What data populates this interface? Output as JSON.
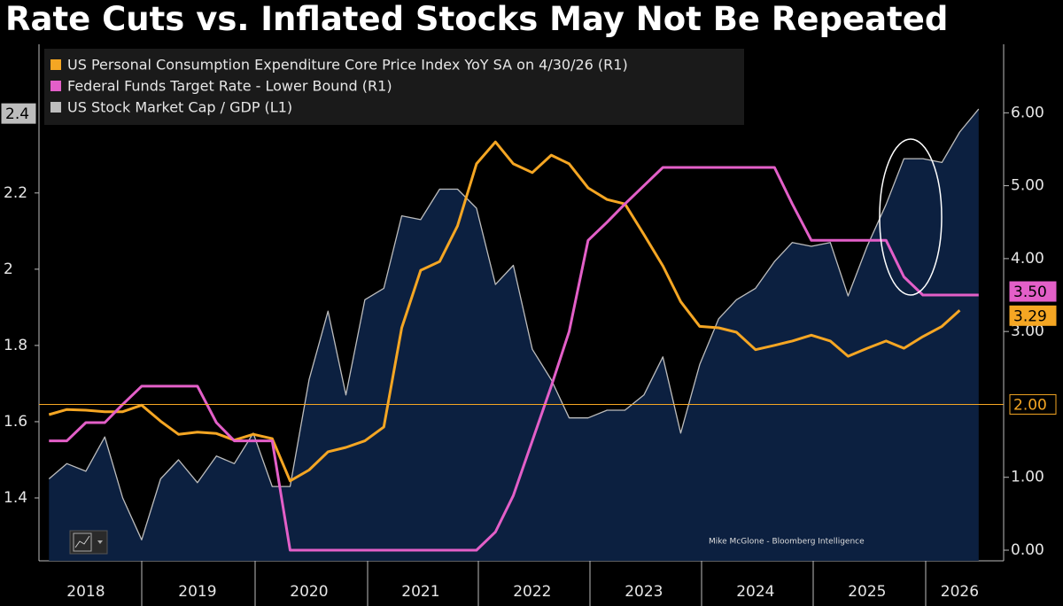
{
  "chart_data": {
    "type": "line",
    "title": "Rate Cuts vs. Inflated Stocks May Not Be Repeated",
    "annotation": "Mike McGlone - Bloomberg Intelligence",
    "x": [
      2018.17,
      2018.33,
      2018.5,
      2018.67,
      2018.83,
      2019.0,
      2019.17,
      2019.33,
      2019.5,
      2019.67,
      2019.83,
      2020.0,
      2020.17,
      2020.33,
      2020.5,
      2020.67,
      2020.83,
      2021.0,
      2021.17,
      2021.33,
      2021.5,
      2021.67,
      2021.83,
      2022.0,
      2022.17,
      2022.33,
      2022.5,
      2022.67,
      2022.83,
      2023.0,
      2023.17,
      2023.33,
      2023.5,
      2023.67,
      2023.83,
      2024.0,
      2024.17,
      2024.33,
      2024.5,
      2024.67,
      2024.83,
      2025.0,
      2025.17,
      2025.33,
      2025.5,
      2025.67,
      2025.83,
      2026.0,
      2026.17,
      2026.33,
      2026.5
    ],
    "xlim": [
      2018.08,
      2026.66
    ],
    "xticks": [
      {
        "value": 2018.5,
        "label": "2018"
      },
      {
        "value": 2019.5,
        "label": "2019"
      },
      {
        "value": 2020.5,
        "label": "2020"
      },
      {
        "value": 2021.5,
        "label": "2021"
      },
      {
        "value": 2022.5,
        "label": "2022"
      },
      {
        "value": 2023.5,
        "label": "2023"
      },
      {
        "value": 2024.5,
        "label": "2024"
      },
      {
        "value": 2025.5,
        "label": "2025"
      },
      {
        "value": 2026.33,
        "label": "2026"
      }
    ],
    "ylim": [
      1.235,
      2.59
    ],
    "yticks": [
      1.4,
      1.6,
      1.8,
      2.0,
      2.2
    ],
    "y2lim": [
      -0.146,
      6.94
    ],
    "y2ticks": [
      {
        "value": 0,
        "label": "0.00"
      },
      {
        "value": 1,
        "label": "1.00"
      },
      {
        "value": 3,
        "label": "3.00"
      },
      {
        "value": 4,
        "label": "4.00"
      },
      {
        "value": 5,
        "label": "5.00"
      },
      {
        "value": 6,
        "label": "6.00"
      }
    ],
    "hline": {
      "value": 2,
      "label": "2.00",
      "axis": "y2",
      "color": "#f5a623"
    },
    "series": [
      {
        "name": "US Personal Consumption Expenditure Core Price Index YoY SA on 4/30/26 (R1)",
        "color": "#f5a623",
        "axis": "y2",
        "end_label": "3.29",
        "values": [
          1.86,
          1.93,
          1.92,
          1.9,
          1.9,
          1.99,
          1.77,
          1.59,
          1.62,
          1.6,
          1.51,
          1.59,
          1.53,
          0.95,
          1.1,
          1.35,
          1.41,
          1.5,
          1.69,
          3.05,
          3.84,
          3.96,
          4.45,
          5.3,
          5.6,
          5.3,
          5.18,
          5.42,
          5.3,
          4.97,
          4.81,
          4.75,
          4.33,
          3.9,
          3.41,
          3.07,
          3.05,
          2.99,
          2.75,
          2.81,
          2.87,
          2.95,
          2.87,
          2.66,
          2.77,
          2.87,
          2.77,
          2.93,
          3.07,
          3.29,
          null
        ]
      },
      {
        "name": "Federal Funds Target Rate - Lower Bound (R1)",
        "color": "#e35fc8",
        "axis": "y2",
        "end_label": "3.50",
        "values": [
          1.5,
          1.5,
          1.75,
          1.75,
          2.0,
          2.25,
          2.25,
          2.25,
          2.25,
          1.75,
          1.5,
          1.5,
          1.5,
          0,
          0,
          0,
          0,
          0,
          0,
          0,
          0,
          0,
          0,
          0,
          0.25,
          0.75,
          1.5,
          2.25,
          3.0,
          4.25,
          4.5,
          4.75,
          5.0,
          5.25,
          5.25,
          5.25,
          5.25,
          5.25,
          5.25,
          5.25,
          4.75,
          4.25,
          4.25,
          4.25,
          4.25,
          4.25,
          3.75,
          3.5,
          3.5,
          3.5,
          3.5
        ]
      },
      {
        "name": "US Stock Market Cap / GDP (L1)",
        "color": "#bdbdbd",
        "fill": "#0c2040",
        "axis": "y",
        "end_label": "2.4",
        "values": [
          1.45,
          1.49,
          1.47,
          1.56,
          1.4,
          1.29,
          1.45,
          1.5,
          1.44,
          1.51,
          1.49,
          1.57,
          1.43,
          1.43,
          1.71,
          1.89,
          1.67,
          1.92,
          1.95,
          2.14,
          2.13,
          2.21,
          2.21,
          2.16,
          1.96,
          2.01,
          1.79,
          1.71,
          1.61,
          1.61,
          1.63,
          1.63,
          1.67,
          1.77,
          1.57,
          1.75,
          1.87,
          1.92,
          1.95,
          2.02,
          2.07,
          2.06,
          2.07,
          1.93,
          2.06,
          2.17,
          2.29,
          2.29,
          2.28,
          2.36,
          2.42
        ]
      }
    ]
  }
}
